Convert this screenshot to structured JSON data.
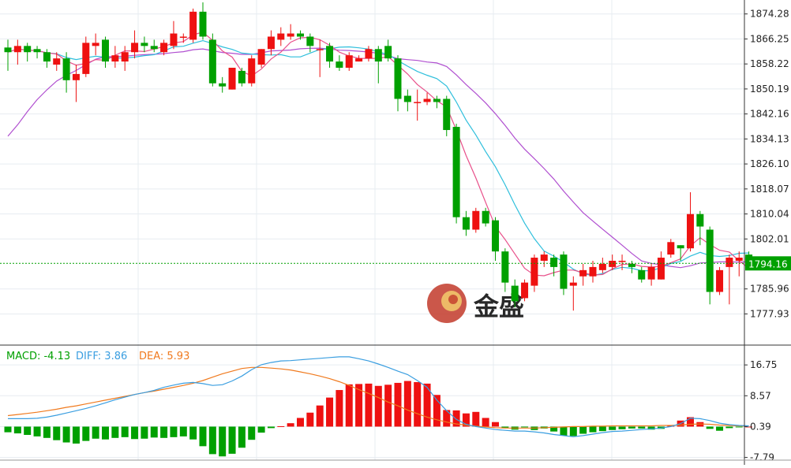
{
  "chart_data": [
    {
      "type": "candlestick",
      "panel": "price",
      "y_ticks": [
        "1874.28",
        "1866.25",
        "1858.22",
        "1850.19",
        "1842.16",
        "1834.13",
        "1826.10",
        "1818.07",
        "1810.04",
        "1802.01",
        "1785.96",
        "1777.93"
      ],
      "ylim": [
        1774.5,
        1878.0
      ],
      "last_price": {
        "value": 1794.16,
        "label": "1794.16",
        "color": "#00a000"
      },
      "watermark": {
        "text": "金盛"
      },
      "colors": {
        "up": "#ee1111",
        "down": "#00a000",
        "ma_fast": "#e8508a",
        "ma_mid": "#2fbfdc",
        "ma_slow": "#b04fd0"
      },
      "candles": [
        [
          1863.5,
          1862,
          1866,
          1856
        ],
        [
          1862,
          1864,
          1866,
          1858
        ],
        [
          1864,
          1862,
          1865,
          1859
        ],
        [
          1863,
          1862,
          1864,
          1860
        ],
        [
          1862,
          1859,
          1863,
          1857
        ],
        [
          1858,
          1860,
          1862,
          1856
        ],
        [
          1860,
          1853,
          1862,
          1849
        ],
        [
          1853,
          1855,
          1858,
          1846
        ],
        [
          1855,
          1865,
          1867,
          1854
        ],
        [
          1864,
          1865,
          1868,
          1861
        ],
        [
          1866,
          1859,
          1867,
          1857
        ],
        [
          1859,
          1861,
          1864,
          1857
        ],
        [
          1859,
          1862,
          1864,
          1856
        ],
        [
          1862,
          1865,
          1869,
          1860
        ],
        [
          1865,
          1864,
          1867,
          1862
        ],
        [
          1864,
          1863,
          1866,
          1862
        ],
        [
          1862,
          1865,
          1866,
          1861
        ],
        [
          1864,
          1868,
          1872,
          1863
        ],
        [
          1867,
          1867,
          1868,
          1865
        ],
        [
          1866,
          1875,
          1876,
          1865
        ],
        [
          1875,
          1867,
          1878,
          1866
        ],
        [
          1866,
          1852,
          1868,
          1851
        ],
        [
          1852,
          1851,
          1854,
          1849
        ],
        [
          1850,
          1857,
          1857,
          1850
        ],
        [
          1856,
          1852,
          1857,
          1851
        ],
        [
          1852,
          1860,
          1861,
          1851
        ],
        [
          1858,
          1863,
          1863,
          1857
        ],
        [
          1863,
          1867,
          1869,
          1861
        ],
        [
          1866,
          1868,
          1870,
          1864
        ],
        [
          1867,
          1868,
          1871,
          1866
        ],
        [
          1868,
          1867,
          1869,
          1866
        ],
        [
          1867,
          1864,
          1868,
          1862
        ],
        [
          1863,
          1863,
          1866,
          1854
        ],
        [
          1864,
          1859,
          1865,
          1857
        ],
        [
          1859,
          1857,
          1861,
          1856
        ],
        [
          1857,
          1861,
          1862,
          1856
        ],
        [
          1859,
          1860,
          1861,
          1859
        ],
        [
          1860,
          1863,
          1864,
          1859
        ],
        [
          1863,
          1859,
          1864,
          1852
        ],
        [
          1864,
          1860,
          1866,
          1859
        ],
        [
          1860,
          1847,
          1861,
          1843
        ],
        [
          1848,
          1846,
          1850,
          1843
        ],
        [
          1846,
          1846,
          1850,
          1840
        ],
        [
          1846,
          1847,
          1849,
          1845
        ],
        [
          1847,
          1846,
          1848,
          1844
        ],
        [
          1847,
          1837,
          1848,
          1835
        ],
        [
          1838,
          1809,
          1839,
          1807
        ],
        [
          1809,
          1805,
          1811,
          1803
        ],
        [
          1805,
          1811,
          1812,
          1804
        ],
        [
          1811,
          1807,
          1812,
          1806
        ],
        [
          1808,
          1798,
          1809,
          1795
        ],
        [
          1798,
          1788,
          1799,
          1785
        ],
        [
          1787,
          1782,
          1789,
          1780
        ],
        [
          1783,
          1788,
          1789,
          1782
        ],
        [
          1787,
          1796,
          1797,
          1785
        ],
        [
          1795,
          1797,
          1798,
          1793
        ],
        [
          1796,
          1793,
          1797,
          1790
        ],
        [
          1797,
          1786,
          1798,
          1784
        ],
        [
          1787,
          1788,
          1790,
          1779
        ],
        [
          1790,
          1792,
          1794,
          1787
        ],
        [
          1790,
          1793,
          1795,
          1788
        ],
        [
          1792,
          1794,
          1796,
          1791
        ],
        [
          1793,
          1795,
          1797,
          1792
        ],
        [
          1795,
          1795,
          1797,
          1792
        ],
        [
          1794,
          1793,
          1795,
          1791
        ],
        [
          1792,
          1789,
          1793,
          1788
        ],
        [
          1789,
          1793,
          1794,
          1787
        ],
        [
          1789,
          1796,
          1798,
          1789
        ],
        [
          1797,
          1801,
          1802,
          1796
        ],
        [
          1800,
          1799,
          1800,
          1795
        ],
        [
          1799,
          1810,
          1817,
          1798
        ],
        [
          1810,
          1806,
          1811,
          1800
        ],
        [
          1805,
          1785,
          1806,
          1781
        ],
        [
          1785,
          1792,
          1793,
          1784
        ],
        [
          1793,
          1796,
          1797,
          1781
        ],
        [
          1795,
          1796,
          1798,
          1790
        ],
        [
          1797,
          1794,
          1798,
          1792
        ]
      ]
    },
    {
      "type": "macd",
      "panel": "indicator",
      "legend": [
        {
          "label": "MACD: -4.13",
          "color": "#00a000"
        },
        {
          "label": "DIFF: 3.86",
          "color": "#3a9ee0"
        },
        {
          "label": "DEA: 5.93",
          "color": "#f07a1e"
        }
      ],
      "y_ticks": [
        "16.75",
        "8.57",
        "0.39",
        "-7.79"
      ],
      "ylim": [
        -8.5,
        19.5
      ],
      "zero_value": 0.39,
      "colors": {
        "positive": "#ee1111",
        "negative": "#00a000",
        "diff": "#3a9ee0",
        "dea": "#f07a1e"
      },
      "histogram": [
        -1.5,
        -1.8,
        -2.2,
        -2.6,
        -3.0,
        -3.6,
        -4.2,
        -4.5,
        -3.8,
        -3.2,
        -3.4,
        -3.0,
        -2.8,
        -3.3,
        -3.2,
        -2.9,
        -3.0,
        -2.8,
        -2.6,
        -3.4,
        -5.2,
        -7.3,
        -7.9,
        -7.2,
        -5.6,
        -3.5,
        -1.6,
        -0.4,
        0.1,
        0.9,
        2.3,
        3.7,
        5.6,
        7.7,
        9.7,
        11.2,
        11.3,
        11.4,
        10.8,
        11.1,
        11.6,
        12.1,
        11.8,
        11.4,
        8.4,
        4.4,
        4.3,
        3.5,
        3.9,
        2.3,
        1.2,
        -0.3,
        -0.8,
        -0.2,
        -0.9,
        -0.5,
        -1.3,
        -2.4,
        -2.5,
        -1.9,
        -1.5,
        -1.2,
        -0.9,
        -0.7,
        -0.5,
        -0.5,
        -0.8,
        -0.6,
        0.4,
        1.6,
        2.5,
        1.2,
        -0.6,
        -1.1,
        -0.4,
        -0.2,
        0.0
      ],
      "diff": [
        2.5,
        2.5,
        2.5,
        2.6,
        2.9,
        3.4,
        4.0,
        4.6,
        5.2,
        5.9,
        6.7,
        7.5,
        8.2,
        8.9,
        9.4,
        10.0,
        10.8,
        11.4,
        11.9,
        12.1,
        11.8,
        11.3,
        11.5,
        12.5,
        13.8,
        15.5,
        16.8,
        17.4,
        17.8,
        17.9,
        18.1,
        18.3,
        18.5,
        18.7,
        18.9,
        18.9,
        18.4,
        17.8,
        17.0,
        16.1,
        15.1,
        14.2,
        12.6,
        10.8,
        7.4,
        4.6,
        2.3,
        1.0,
        0.4,
        0.0,
        -0.4,
        -0.6,
        -0.8,
        -0.8,
        -1.0,
        -1.3,
        -1.7,
        -2.0,
        -2.3,
        -2.0,
        -1.6,
        -1.2,
        -0.9,
        -0.8,
        -0.6,
        -0.4,
        -0.2,
        0.0,
        0.4,
        1.2,
        2.6,
        2.5,
        2.0,
        1.3,
        0.9,
        0.7,
        0.6
      ],
      "dea": [
        3.3,
        3.6,
        3.9,
        4.2,
        4.6,
        5.0,
        5.5,
        5.9,
        6.4,
        6.9,
        7.4,
        7.9,
        8.4,
        8.9,
        9.4,
        9.8,
        10.3,
        10.8,
        11.3,
        11.9,
        12.6,
        13.5,
        14.4,
        15.1,
        15.8,
        16.1,
        16.1,
        15.9,
        15.7,
        15.4,
        14.9,
        14.4,
        13.8,
        13.1,
        12.3,
        11.3,
        10.2,
        9.2,
        8.1,
        6.9,
        5.9,
        4.8,
        3.8,
        2.9,
        2.2,
        1.6,
        1.1,
        0.8,
        0.5,
        0.3,
        0.1,
        0.0,
        0.0,
        0.0,
        0.0,
        0.1,
        0.2,
        0.3,
        0.4,
        0.4,
        0.5,
        0.5,
        0.6,
        0.6,
        0.6,
        0.6,
        0.6,
        0.7,
        0.7,
        0.8,
        1.0,
        1.1,
        1.0,
        0.8,
        0.7,
        0.6,
        0.5
      ]
    }
  ]
}
